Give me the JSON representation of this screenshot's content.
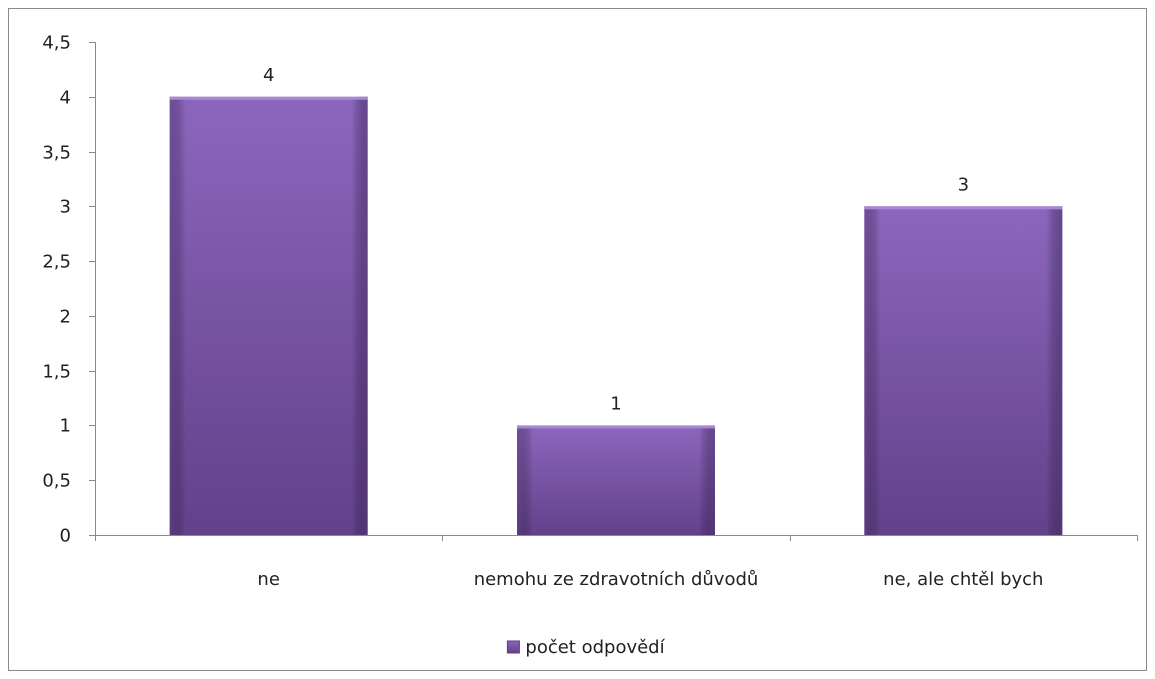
{
  "chart_data": {
    "type": "bar",
    "categories": [
      "ne",
      "nemohu ze zdravotních důvodů",
      "ne, ale chtěl bych"
    ],
    "series": [
      {
        "name": "počet odpovědí",
        "values": [
          4,
          1,
          3
        ],
        "color": "#7b55a8"
      }
    ],
    "data_labels": [
      "4",
      "1",
      "3"
    ],
    "y_ticks": [
      "0",
      "0,5",
      "1",
      "1,5",
      "2",
      "2,5",
      "3",
      "3,5",
      "4",
      "4,5"
    ],
    "ylim": [
      0,
      4.5
    ],
    "grid": false,
    "legend": {
      "position": "bottom"
    }
  }
}
